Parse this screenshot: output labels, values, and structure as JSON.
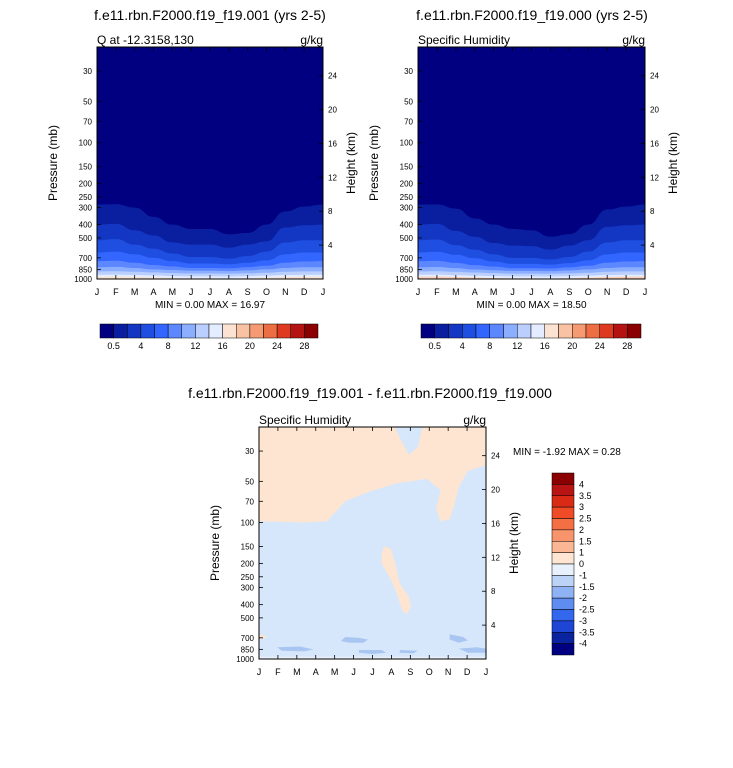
{
  "chart_data": [
    {
      "type": "heatmap",
      "title": "f.e11.rbn.F2000.f19_f19.001 (yrs 2-5)",
      "left_string": "Q at -12.3158,130",
      "right_string": "g/kg",
      "ylabel": "Pressure (mb)",
      "ylabel_right": "Height (km)",
      "x_ticks": [
        "J",
        "F",
        "M",
        "A",
        "M",
        "J",
        "J",
        "A",
        "S",
        "O",
        "N",
        "D",
        "J"
      ],
      "y_ticks": [
        "30",
        "50",
        "70",
        "100",
        "150",
        "200",
        "250",
        "300",
        "400",
        "500",
        "700",
        "850",
        "1000"
      ],
      "y_ticks_right": [
        "24",
        "20",
        "16",
        "12",
        "8",
        "4"
      ],
      "ylim": [
        1000,
        20
      ],
      "y_log": true,
      "min_max": "MIN =   0.00 MAX =  16.97",
      "contour_bottoms_mb": [
        [
          285,
          283,
          300,
          350,
          400,
          430,
          430,
          470,
          460,
          400,
          320,
          295,
          285
        ],
        [
          400,
          395,
          440,
          480,
          540,
          560,
          560,
          590,
          560,
          530,
          420,
          405,
          400
        ],
        [
          520,
          510,
          560,
          600,
          650,
          690,
          690,
          710,
          680,
          630,
          540,
          520,
          520
        ],
        [
          640,
          630,
          660,
          700,
          740,
          770,
          770,
          780,
          760,
          730,
          660,
          640,
          640
        ],
        [
          740,
          735,
          760,
          790,
          810,
          830,
          830,
          835,
          820,
          800,
          760,
          745,
          740
        ],
        [
          820,
          815,
          830,
          850,
          860,
          870,
          870,
          875,
          865,
          850,
          830,
          820,
          820
        ],
        [
          880,
          878,
          885,
          895,
          905,
          912,
          912,
          915,
          910,
          900,
          885,
          880,
          880
        ],
        [
          930,
          928,
          935,
          942,
          950,
          955,
          955,
          958,
          952,
          945,
          935,
          930,
          930
        ],
        [
          965,
          962,
          968,
          975,
          985,
          990,
          990,
          995,
          988,
          980,
          968,
          965,
          965
        ]
      ],
      "fill_colors": [
        "#000080",
        "#0A1FA0",
        "#1437C3",
        "#1E4FE0",
        "#3366FF",
        "#5C87FF",
        "#8BAEFF",
        "#BBCFFF",
        "#E4ECFF",
        "#FCE2D1"
      ],
      "colorbar_labels": [
        "0.5",
        "4",
        "8",
        "12",
        "16",
        "20",
        "24",
        "28"
      ],
      "colorbar_colors": [
        "#000080",
        "#0A1FA0",
        "#1437C3",
        "#1E4FE0",
        "#3366FF",
        "#5C87FF",
        "#8BAEFF",
        "#BBCFFF",
        "#E4ECFF",
        "#FCE2D1",
        "#F9C3A3",
        "#F59A72",
        "#EE6E44",
        "#DD3A1F",
        "#B51212",
        "#8B0000"
      ]
    },
    {
      "type": "heatmap",
      "title": "f.e11.rbn.F2000.f19_f19.000 (yrs 2-5)",
      "left_string": "Specific Humidity",
      "right_string": "g/kg",
      "ylabel": "Pressure (mb)",
      "ylabel_right": "Height (km)",
      "x_ticks": [
        "J",
        "F",
        "M",
        "A",
        "M",
        "J",
        "J",
        "A",
        "S",
        "O",
        "N",
        "D",
        "J"
      ],
      "y_ticks": [
        "30",
        "50",
        "70",
        "100",
        "150",
        "200",
        "250",
        "300",
        "400",
        "500",
        "700",
        "850",
        "1000"
      ],
      "y_ticks_right": [
        "24",
        "20",
        "16",
        "12",
        "8",
        "4"
      ],
      "ylim": [
        1000,
        20
      ],
      "y_log": true,
      "min_max": "MIN =   0.00 MAX =  18.50",
      "contour_bottoms_mb": [
        [
          285,
          285,
          305,
          360,
          400,
          430,
          440,
          490,
          470,
          400,
          310,
          295,
          285
        ],
        [
          400,
          395,
          445,
          490,
          545,
          570,
          575,
          610,
          570,
          520,
          415,
          405,
          400
        ],
        [
          520,
          515,
          565,
          610,
          660,
          700,
          700,
          720,
          690,
          630,
          540,
          520,
          520
        ],
        [
          640,
          632,
          665,
          705,
          745,
          775,
          775,
          785,
          765,
          730,
          660,
          640,
          640
        ],
        [
          740,
          736,
          762,
          792,
          812,
          832,
          832,
          838,
          822,
          800,
          760,
          745,
          740
        ],
        [
          820,
          816,
          832,
          852,
          862,
          872,
          872,
          876,
          866,
          850,
          830,
          820,
          820
        ],
        [
          880,
          878,
          886,
          896,
          906,
          914,
          914,
          916,
          910,
          900,
          885,
          880,
          880
        ],
        [
          930,
          928,
          936,
          944,
          951,
          956,
          956,
          959,
          953,
          945,
          935,
          930,
          930
        ],
        [
          962,
          960,
          966,
          974,
          984,
          990,
          990,
          994,
          988,
          978,
          966,
          962,
          962
        ]
      ],
      "fill_colors": [
        "#000080",
        "#0A1FA0",
        "#1437C3",
        "#1E4FE0",
        "#3366FF",
        "#5C87FF",
        "#8BAEFF",
        "#BBCFFF",
        "#E4ECFF",
        "#FCD0B8"
      ],
      "colorbar_labels": [
        "0.5",
        "4",
        "8",
        "12",
        "16",
        "20",
        "24",
        "28"
      ],
      "colorbar_colors": [
        "#000080",
        "#0A1FA0",
        "#1437C3",
        "#1E4FE0",
        "#3366FF",
        "#5C87FF",
        "#8BAEFF",
        "#BBCFFF",
        "#E4ECFF",
        "#FCE2D1",
        "#F9C3A3",
        "#F59A72",
        "#EE6E44",
        "#DD3A1F",
        "#B51212",
        "#8B0000"
      ]
    },
    {
      "type": "heatmap",
      "title": "f.e11.rbn.F2000.f19_f19.001 - f.e11.rbn.F2000.f19_f19.000",
      "left_string": "Specific Humidity",
      "right_string": "g/kg",
      "ylabel": "Pressure (mb)",
      "ylabel_right": "Height (km)",
      "x_ticks": [
        "J",
        "F",
        "M",
        "A",
        "M",
        "J",
        "J",
        "A",
        "S",
        "O",
        "N",
        "D",
        "J"
      ],
      "y_ticks": [
        "30",
        "50",
        "70",
        "100",
        "150",
        "200",
        "250",
        "300",
        "400",
        "500",
        "700",
        "850",
        "1000"
      ],
      "y_ticks_right": [
        "24",
        "20",
        "16",
        "12",
        "8",
        "4"
      ],
      "ylim": [
        1000,
        20
      ],
      "y_log": true,
      "min_max": "MIN =  -1.92 MAX =   0.28",
      "background_color": "#D6E7FB",
      "positive_color": "#FDE5D2",
      "negative_color": "#A9C6F2",
      "colorbar_labels": [
        "4",
        "3.5",
        "3",
        "2.5",
        "2",
        "1.5",
        "1",
        "0",
        "-1",
        "-1.5",
        "-2",
        "-2.5",
        "-3",
        "-3.5",
        "-4"
      ],
      "colorbar_colors": [
        "#8B0000",
        "#B81414",
        "#D82A14",
        "#EE4B26",
        "#F56F45",
        "#F8946C",
        "#FBB693",
        "#FDE5D2",
        "#E9F1FC",
        "#BBD3F7",
        "#8FB2F4",
        "#5E8CF0",
        "#3367EE",
        "#1E45D4",
        "#0A239E",
        "#000080"
      ]
    }
  ]
}
